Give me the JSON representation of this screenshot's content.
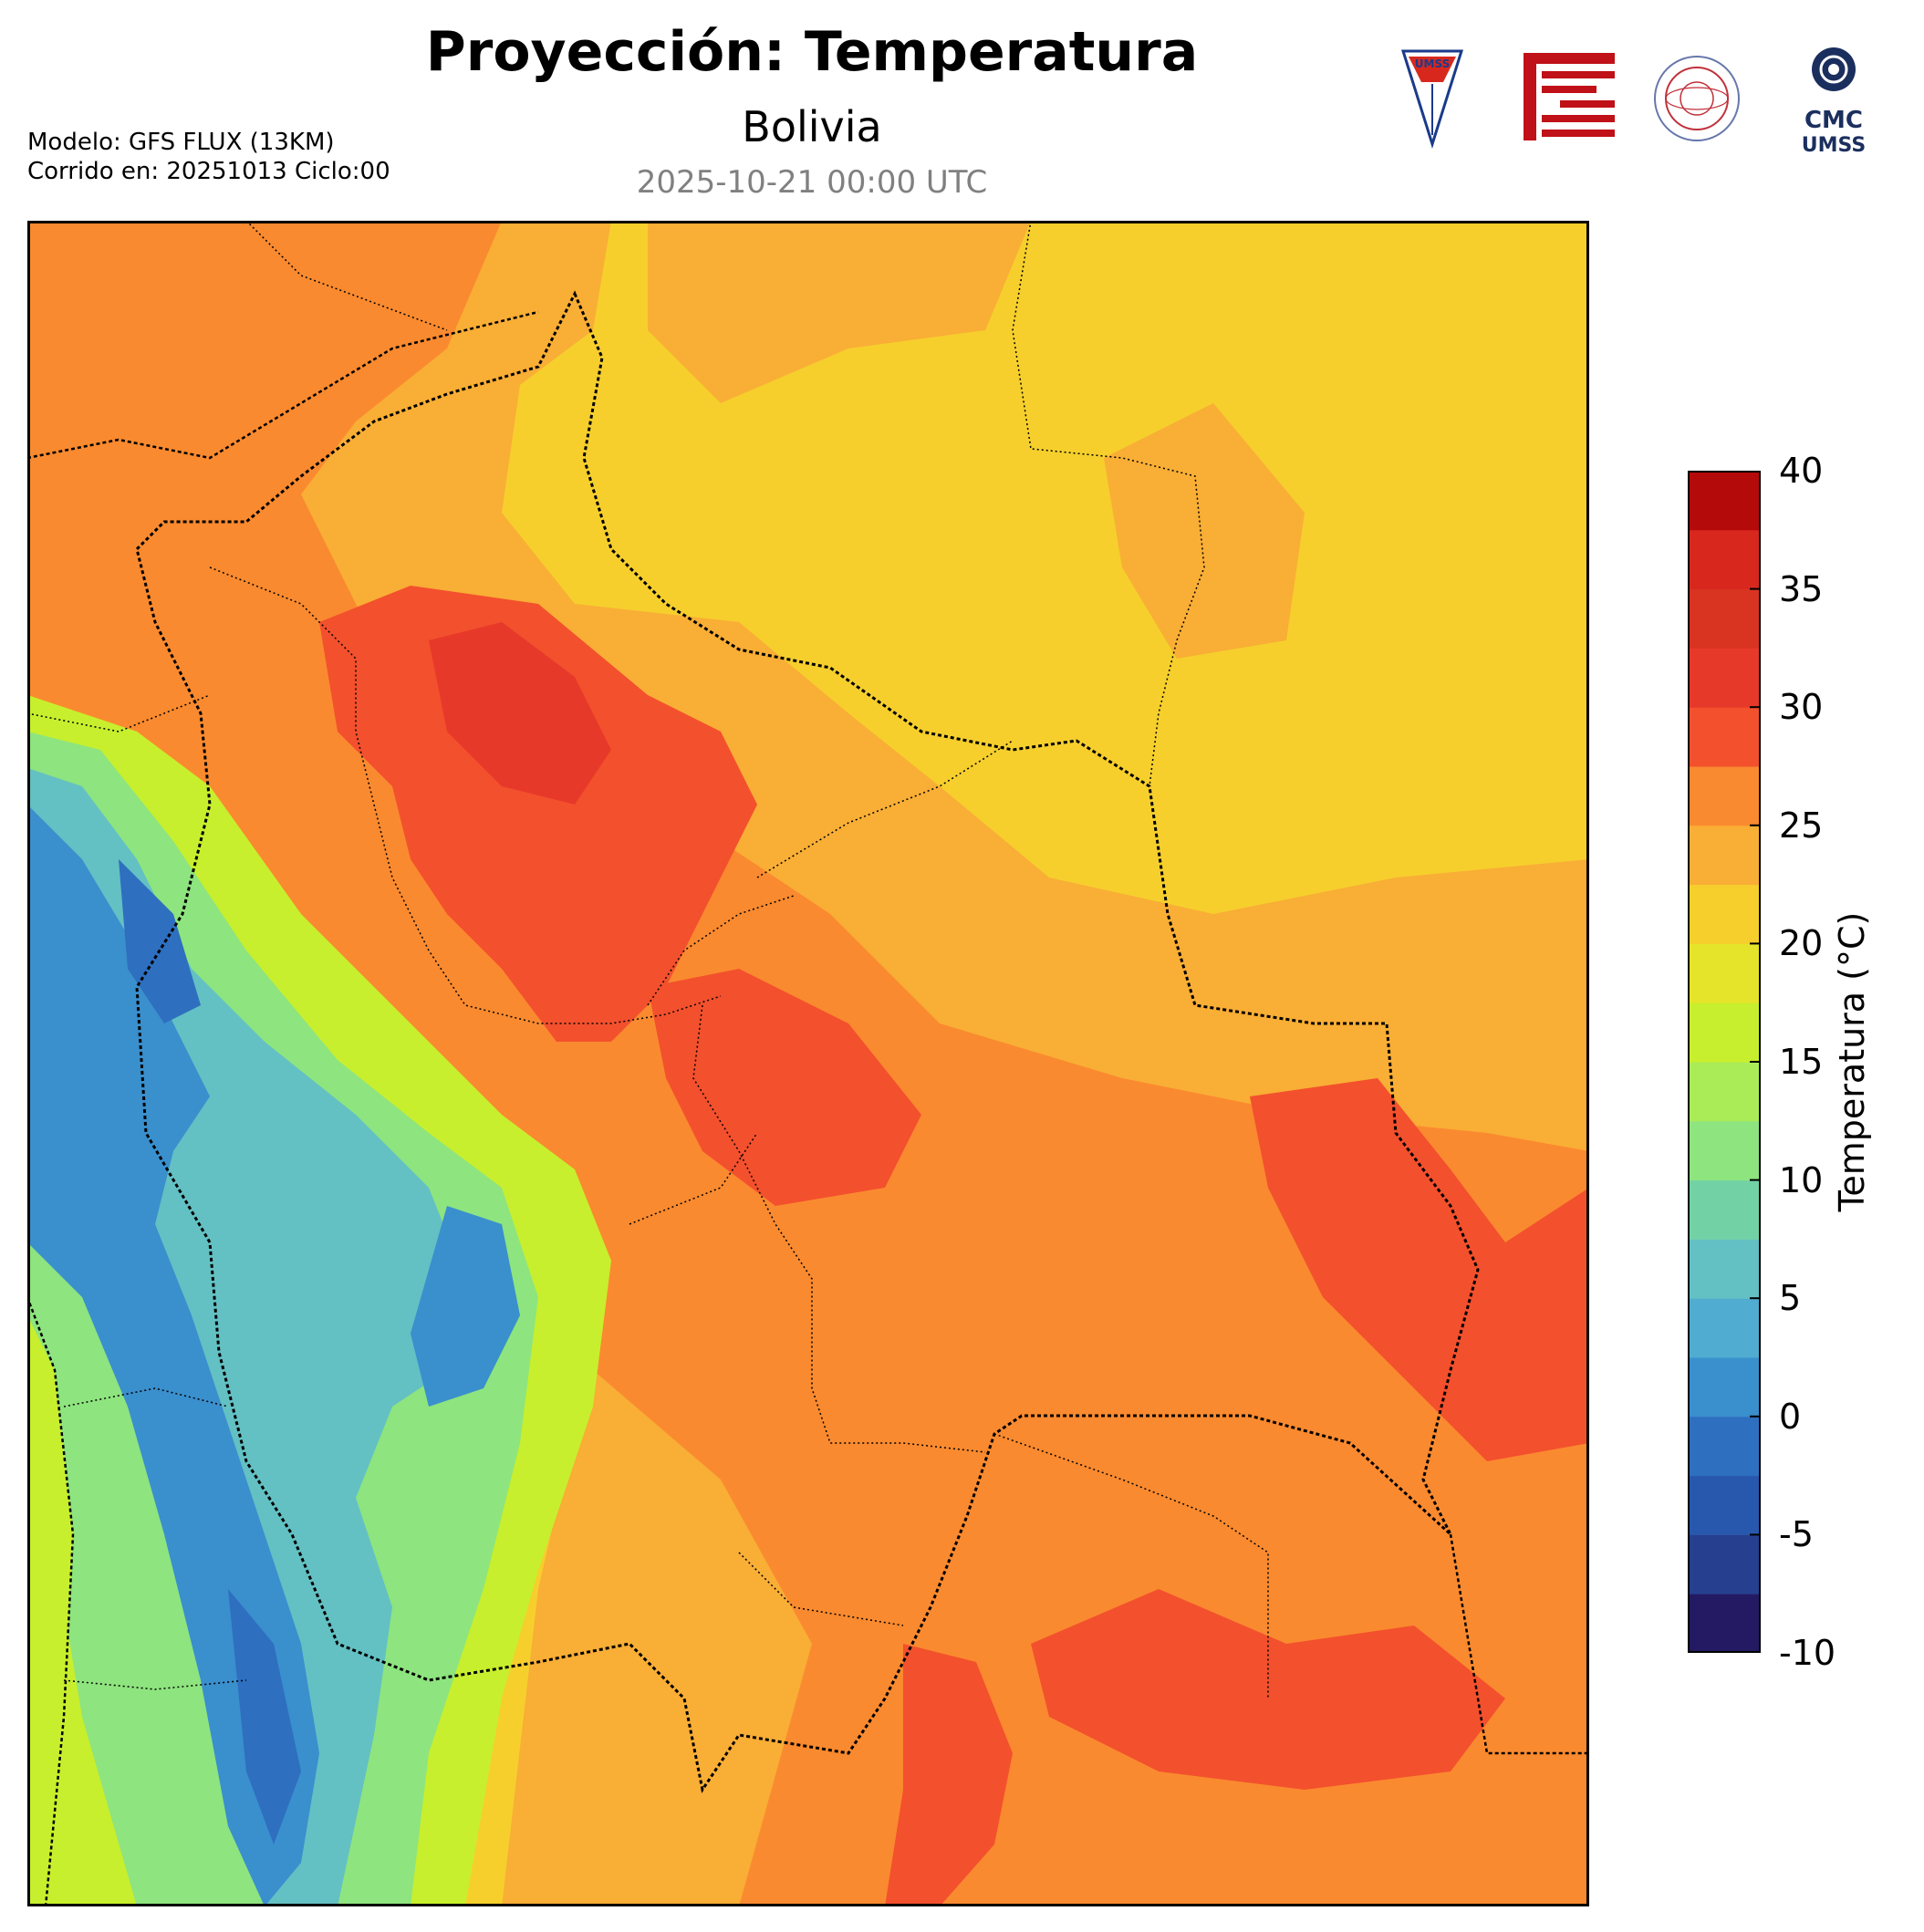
{
  "header": {
    "title": "Proyección: Temperatura",
    "region": "Bolivia",
    "valid_time": "2025-10-21 00:00 UTC",
    "model_line": "Modelo: GFS FLUX (13KM)",
    "run_line": "Corrido en: 20251013 Ciclo:00"
  },
  "logos": [
    {
      "name": "umss-shield-logo",
      "text": "UMSS"
    },
    {
      "name": "red-emblem-logo",
      "text": ""
    },
    {
      "name": "departamento-fisica-logo",
      "text": "DEPARTAMENTO DE FÍSICA"
    },
    {
      "name": "cmc-logo",
      "text": "CMC UMSS"
    }
  ],
  "colorbar": {
    "label": "Temperatura (°C)",
    "min": -10,
    "max": 40,
    "step": 2.5,
    "tick_labels": [
      "40",
      "35",
      "30",
      "25",
      "20",
      "15",
      "10",
      "5",
      "0",
      "-5",
      "-10"
    ],
    "colors": [
      "#231a63",
      "#263f8f",
      "#2858ad",
      "#2e6fbf",
      "#3a8fcd",
      "#50acd0",
      "#63c0c3",
      "#72d2a5",
      "#8ee47e",
      "#aaec58",
      "#c8ef2d",
      "#e6e42a",
      "#f6cf2d",
      "#f9ae35",
      "#fa8a2f",
      "#f3502d",
      "#e7392a",
      "#d93322",
      "#d8281e",
      "#b50a0a"
    ]
  },
  "map_colors": {
    "background": "#f6cf2d",
    "warm_orange": "#f9ae35",
    "orange": "#fa8a2f",
    "red_orange": "#f3502d",
    "red": "#e7392a",
    "green": "#8ee47e",
    "lime": "#c8ef2d",
    "teal": "#63c0c3",
    "blue": "#3a8fcd",
    "dark_blue": "#2e6fbf"
  }
}
